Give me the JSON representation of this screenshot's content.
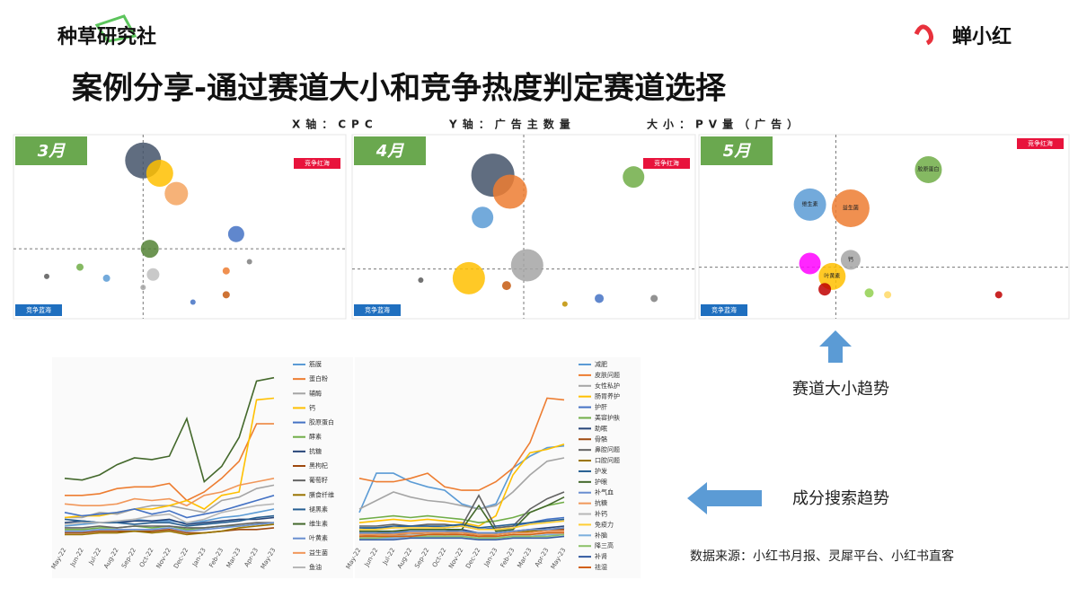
{
  "header": {
    "brand_left": "种草研究社",
    "brand_right": "蝉小红",
    "title": "案例分享-通过赛道大小和竞争热度判定赛道选择",
    "axis_note": {
      "x": "X轴：CPC",
      "y": "Y轴：广告主数量",
      "size": "大小：PV量（广告）"
    }
  },
  "bubble_panels": [
    {
      "month": "3月",
      "red_label": "竞争红海",
      "blue_label": "竞争蓝海",
      "quadrant_split": [
        39,
        38
      ],
      "bubbles": [
        {
          "x": 39,
          "y": 86,
          "size": 20,
          "color": "#44546a"
        },
        {
          "x": 44,
          "y": 79,
          "size": 15,
          "color": "#ffc000"
        },
        {
          "x": 49,
          "y": 68,
          "size": 13,
          "color": "#f4a460"
        },
        {
          "x": 67,
          "y": 46,
          "size": 9,
          "color": "#4472c4"
        },
        {
          "x": 41,
          "y": 38,
          "size": 10,
          "color": "#548235"
        },
        {
          "x": 42,
          "y": 24,
          "size": 7,
          "color": "#bfbfbf"
        },
        {
          "x": 28,
          "y": 22,
          "size": 4,
          "color": "#5b9bd5"
        },
        {
          "x": 20,
          "y": 28,
          "size": 4,
          "color": "#70ad47"
        },
        {
          "x": 10,
          "y": 23,
          "size": 3,
          "color": "#595959"
        },
        {
          "x": 64,
          "y": 26,
          "size": 4,
          "color": "#ed7d31"
        },
        {
          "x": 64,
          "y": 13,
          "size": 4,
          "color": "#c55a11"
        },
        {
          "x": 54,
          "y": 9,
          "size": 3,
          "color": "#4472c4"
        },
        {
          "x": 71,
          "y": 31,
          "size": 3,
          "color": "#7f7f7f"
        },
        {
          "x": 39,
          "y": 17,
          "size": 3,
          "color": "#a5a5a5"
        }
      ]
    },
    {
      "month": "4月",
      "red_label": "竞争红海",
      "blue_label": "竞争蓝海",
      "quadrant_split": [
        50,
        27
      ],
      "bubbles": [
        {
          "x": 41,
          "y": 78,
          "size": 24,
          "color": "#44546a"
        },
        {
          "x": 46,
          "y": 69,
          "size": 19,
          "color": "#ed7d31"
        },
        {
          "x": 38,
          "y": 55,
          "size": 12,
          "color": "#5b9bd5"
        },
        {
          "x": 82,
          "y": 77,
          "size": 12,
          "color": "#70ad47"
        },
        {
          "x": 51,
          "y": 29,
          "size": 18,
          "color": "#a5a5a5"
        },
        {
          "x": 34,
          "y": 22,
          "size": 18,
          "color": "#ffc000"
        },
        {
          "x": 45,
          "y": 18,
          "size": 5,
          "color": "#c55a11"
        },
        {
          "x": 20,
          "y": 21,
          "size": 3,
          "color": "#595959"
        },
        {
          "x": 72,
          "y": 11,
          "size": 5,
          "color": "#4472c4"
        },
        {
          "x": 88,
          "y": 11,
          "size": 4,
          "color": "#7f7f7f"
        },
        {
          "x": 62,
          "y": 8,
          "size": 3,
          "color": "#bf9000"
        }
      ]
    },
    {
      "month": "5月",
      "red_label": "竞争红海",
      "blue_label": "竞争蓝海",
      "quadrant_split": [
        37,
        28
      ],
      "bubbles": [
        {
          "x": 62,
          "y": 81,
          "size": 15,
          "color": "#70ad47",
          "name": "胶原蛋白"
        },
        {
          "x": 30,
          "y": 62,
          "size": 18,
          "color": "#5b9bd5",
          "name": "维生素"
        },
        {
          "x": 41,
          "y": 60,
          "size": 21,
          "color": "#ed7d31",
          "name": "益生菌"
        },
        {
          "x": 41,
          "y": 32,
          "size": 11,
          "color": "#a5a5a5",
          "name": "钙"
        },
        {
          "x": 30,
          "y": 30,
          "size": 12,
          "color": "#ff00ff"
        },
        {
          "x": 36,
          "y": 23,
          "size": 15,
          "color": "#ffc000",
          "name": "叶黄素"
        },
        {
          "x": 34,
          "y": 16,
          "size": 7,
          "color": "#c00000"
        },
        {
          "x": 46,
          "y": 14,
          "size": 5,
          "color": "#92d050"
        },
        {
          "x": 51,
          "y": 13,
          "size": 4,
          "color": "#ffd966"
        },
        {
          "x": 81,
          "y": 13,
          "size": 4,
          "color": "#c00000"
        }
      ]
    }
  ],
  "line_charts": [
    {
      "type": "line",
      "ylim": [
        0,
        100
      ],
      "categories": [
        "May-22",
        "Jun-22",
        "Jul-22",
        "Aug-22",
        "Sep-22",
        "Oct-22",
        "Nov-22",
        "Dec-22",
        "Jan-23",
        "Feb-23",
        "Mar-23",
        "Apr-23",
        "May-23"
      ],
      "series": [
        {
          "name": "筋膜",
          "color": "#5b9bd5",
          "values": [
            10,
            11,
            12,
            12,
            14,
            13,
            13,
            12,
            13,
            15,
            16,
            18,
            20
          ]
        },
        {
          "name": "蛋白粉",
          "color": "#ed7d31",
          "values": [
            28,
            28,
            29,
            32,
            33,
            33,
            35,
            25,
            30,
            38,
            48,
            70,
            70
          ]
        },
        {
          "name": "辅酶",
          "color": "#a5a5a5",
          "values": [
            15,
            15,
            18,
            17,
            20,
            22,
            22,
            20,
            18,
            25,
            27,
            32,
            34
          ]
        },
        {
          "name": "钙",
          "color": "#ffc000",
          "values": [
            15,
            16,
            16,
            18,
            20,
            20,
            22,
            25,
            20,
            28,
            30,
            84,
            85
          ]
        },
        {
          "name": "胶原蛋白",
          "color": "#4472c4",
          "values": [
            18,
            16,
            17,
            18,
            20,
            17,
            19,
            15,
            17,
            19,
            22,
            25,
            28
          ]
        },
        {
          "name": "酵素",
          "color": "#70ad47",
          "values": [
            8,
            8,
            9,
            9,
            10,
            9,
            10,
            8,
            9,
            10,
            10,
            11,
            12
          ]
        },
        {
          "name": "抗糖",
          "color": "#264478",
          "values": [
            12,
            13,
            12,
            12,
            13,
            13,
            14,
            11,
            12,
            13,
            14,
            14,
            15
          ]
        },
        {
          "name": "黑枸杞",
          "color": "#9e480e",
          "values": [
            6,
            6,
            7,
            7,
            7,
            7,
            8,
            6,
            6,
            7,
            8,
            8,
            9
          ]
        },
        {
          "name": "葡萄籽",
          "color": "#636363",
          "values": [
            9,
            9,
            10,
            9,
            10,
            10,
            10,
            9,
            9,
            10,
            11,
            12,
            12
          ]
        },
        {
          "name": "膳食纤维",
          "color": "#997300",
          "values": [
            5,
            5,
            6,
            6,
            7,
            6,
            7,
            5,
            6,
            7,
            9,
            10,
            11
          ]
        },
        {
          "name": "褪黑素",
          "color": "#255e91",
          "values": [
            14,
            13,
            12,
            12,
            11,
            12,
            12,
            10,
            11,
            12,
            13,
            15,
            16
          ]
        },
        {
          "name": "维生素",
          "color": "#43682b",
          "values": [
            38,
            37,
            40,
            46,
            50,
            49,
            51,
            73,
            36,
            45,
            62,
            95,
            97
          ]
        },
        {
          "name": "叶黄素",
          "color": "#698ed0",
          "values": [
            7,
            7,
            8,
            8,
            8,
            8,
            9,
            7,
            8,
            9,
            10,
            11,
            12
          ]
        },
        {
          "name": "益生菌",
          "color": "#f1975a",
          "values": [
            23,
            22,
            22,
            23,
            26,
            25,
            26,
            22,
            28,
            30,
            34,
            36,
            38
          ]
        },
        {
          "name": "鱼油",
          "color": "#b7b7b7",
          "values": [
            11,
            12,
            12,
            13,
            14,
            16,
            17,
            12,
            14,
            18,
            20,
            22,
            23
          ]
        }
      ]
    },
    {
      "type": "line",
      "ylim": [
        0,
        100
      ],
      "categories": [
        "May-22",
        "Jun-22",
        "Jul-22",
        "Aug-22",
        "Sep-22",
        "Oct-22",
        "Nov-22",
        "Dec-22",
        "Jan-23",
        "Feb-23",
        "Mar-23",
        "Apr-23",
        "May-23"
      ],
      "series": [
        {
          "name": "减肥",
          "color": "#5b9bd5",
          "values": [
            18,
            41,
            41,
            36,
            33,
            31,
            23,
            20,
            23,
            44,
            51,
            56,
            57
          ]
        },
        {
          "name": "皮肤问题",
          "color": "#ed7d31",
          "values": [
            38,
            36,
            36,
            38,
            41,
            33,
            31,
            31,
            36,
            44,
            59,
            85,
            84
          ]
        },
        {
          "name": "女性私护",
          "color": "#a5a5a5",
          "values": [
            20,
            25,
            30,
            27,
            25,
            24,
            22,
            20,
            22,
            30,
            40,
            48,
            50
          ]
        },
        {
          "name": "肠胃养护",
          "color": "#ffc000",
          "values": [
            12,
            13,
            14,
            13,
            14,
            13,
            12,
            10,
            16,
            40,
            53,
            55,
            58
          ]
        },
        {
          "name": "护肝",
          "color": "#4472c4",
          "values": [
            8,
            9,
            9,
            10,
            10,
            9,
            10,
            8,
            9,
            10,
            12,
            14,
            15
          ]
        },
        {
          "name": "美容护肤",
          "color": "#70ad47",
          "values": [
            14,
            15,
            16,
            15,
            16,
            15,
            14,
            12,
            13,
            15,
            18,
            22,
            24
          ]
        },
        {
          "name": "助眠",
          "color": "#264478",
          "values": [
            6,
            6,
            7,
            7,
            7,
            7,
            8,
            6,
            6,
            7,
            8,
            9,
            10
          ]
        },
        {
          "name": "骨骼",
          "color": "#9e480e",
          "values": [
            4,
            5,
            5,
            5,
            6,
            5,
            6,
            4,
            5,
            6,
            7,
            8,
            8
          ]
        },
        {
          "name": "鼻腔问题",
          "color": "#636363",
          "values": [
            10,
            10,
            11,
            10,
            11,
            11,
            10,
            28,
            9,
            10,
            20,
            26,
            30
          ]
        },
        {
          "name": "口腔问题",
          "color": "#997300",
          "values": [
            5,
            5,
            6,
            6,
            6,
            6,
            7,
            5,
            5,
            6,
            7,
            8,
            9
          ]
        },
        {
          "name": "护发",
          "color": "#255e91",
          "values": [
            9,
            9,
            10,
            10,
            10,
            10,
            11,
            9,
            10,
            11,
            12,
            13,
            14
          ]
        },
        {
          "name": "护眼",
          "color": "#43682b",
          "values": [
            7,
            7,
            7,
            8,
            8,
            8,
            8,
            22,
            7,
            8,
            18,
            22,
            27
          ]
        },
        {
          "name": "补气血",
          "color": "#698ed0",
          "values": [
            6,
            6,
            6,
            7,
            7,
            7,
            7,
            6,
            6,
            7,
            8,
            8,
            9
          ]
        },
        {
          "name": "抗糖",
          "color": "#f1975a",
          "values": [
            5,
            5,
            5,
            6,
            6,
            6,
            6,
            5,
            5,
            6,
            6,
            7,
            7
          ]
        },
        {
          "name": "补钙",
          "color": "#b7b7b7",
          "values": [
            4,
            4,
            4,
            5,
            5,
            5,
            5,
            4,
            4,
            5,
            5,
            6,
            6
          ]
        },
        {
          "name": "免疫力",
          "color": "#ffcd33",
          "values": [
            8,
            8,
            9,
            9,
            9,
            9,
            10,
            8,
            8,
            9,
            11,
            12,
            13
          ]
        },
        {
          "name": "补脑",
          "color": "#7cafdd",
          "values": [
            3,
            3,
            3,
            4,
            4,
            4,
            4,
            3,
            3,
            4,
            4,
            5,
            5
          ]
        },
        {
          "name": "降三高",
          "color": "#8cc168",
          "values": [
            3,
            3,
            4,
            4,
            4,
            4,
            4,
            3,
            3,
            4,
            4,
            4,
            5
          ]
        },
        {
          "name": "补肾",
          "color": "#335aa1",
          "values": [
            2,
            2,
            2,
            3,
            3,
            3,
            3,
            2,
            2,
            3,
            3,
            3,
            4
          ]
        },
        {
          "name": "祛湿",
          "color": "#d26012",
          "values": [
            4,
            4,
            4,
            4,
            5,
            5,
            5,
            4,
            4,
            5,
            5,
            6,
            6
          ]
        }
      ]
    }
  ],
  "annotations": {
    "size_trend": "赛道大小趋势",
    "search_trend": "成分搜索趋势",
    "source": "数据来源：小红书月报、灵犀平台、小红书直客"
  }
}
